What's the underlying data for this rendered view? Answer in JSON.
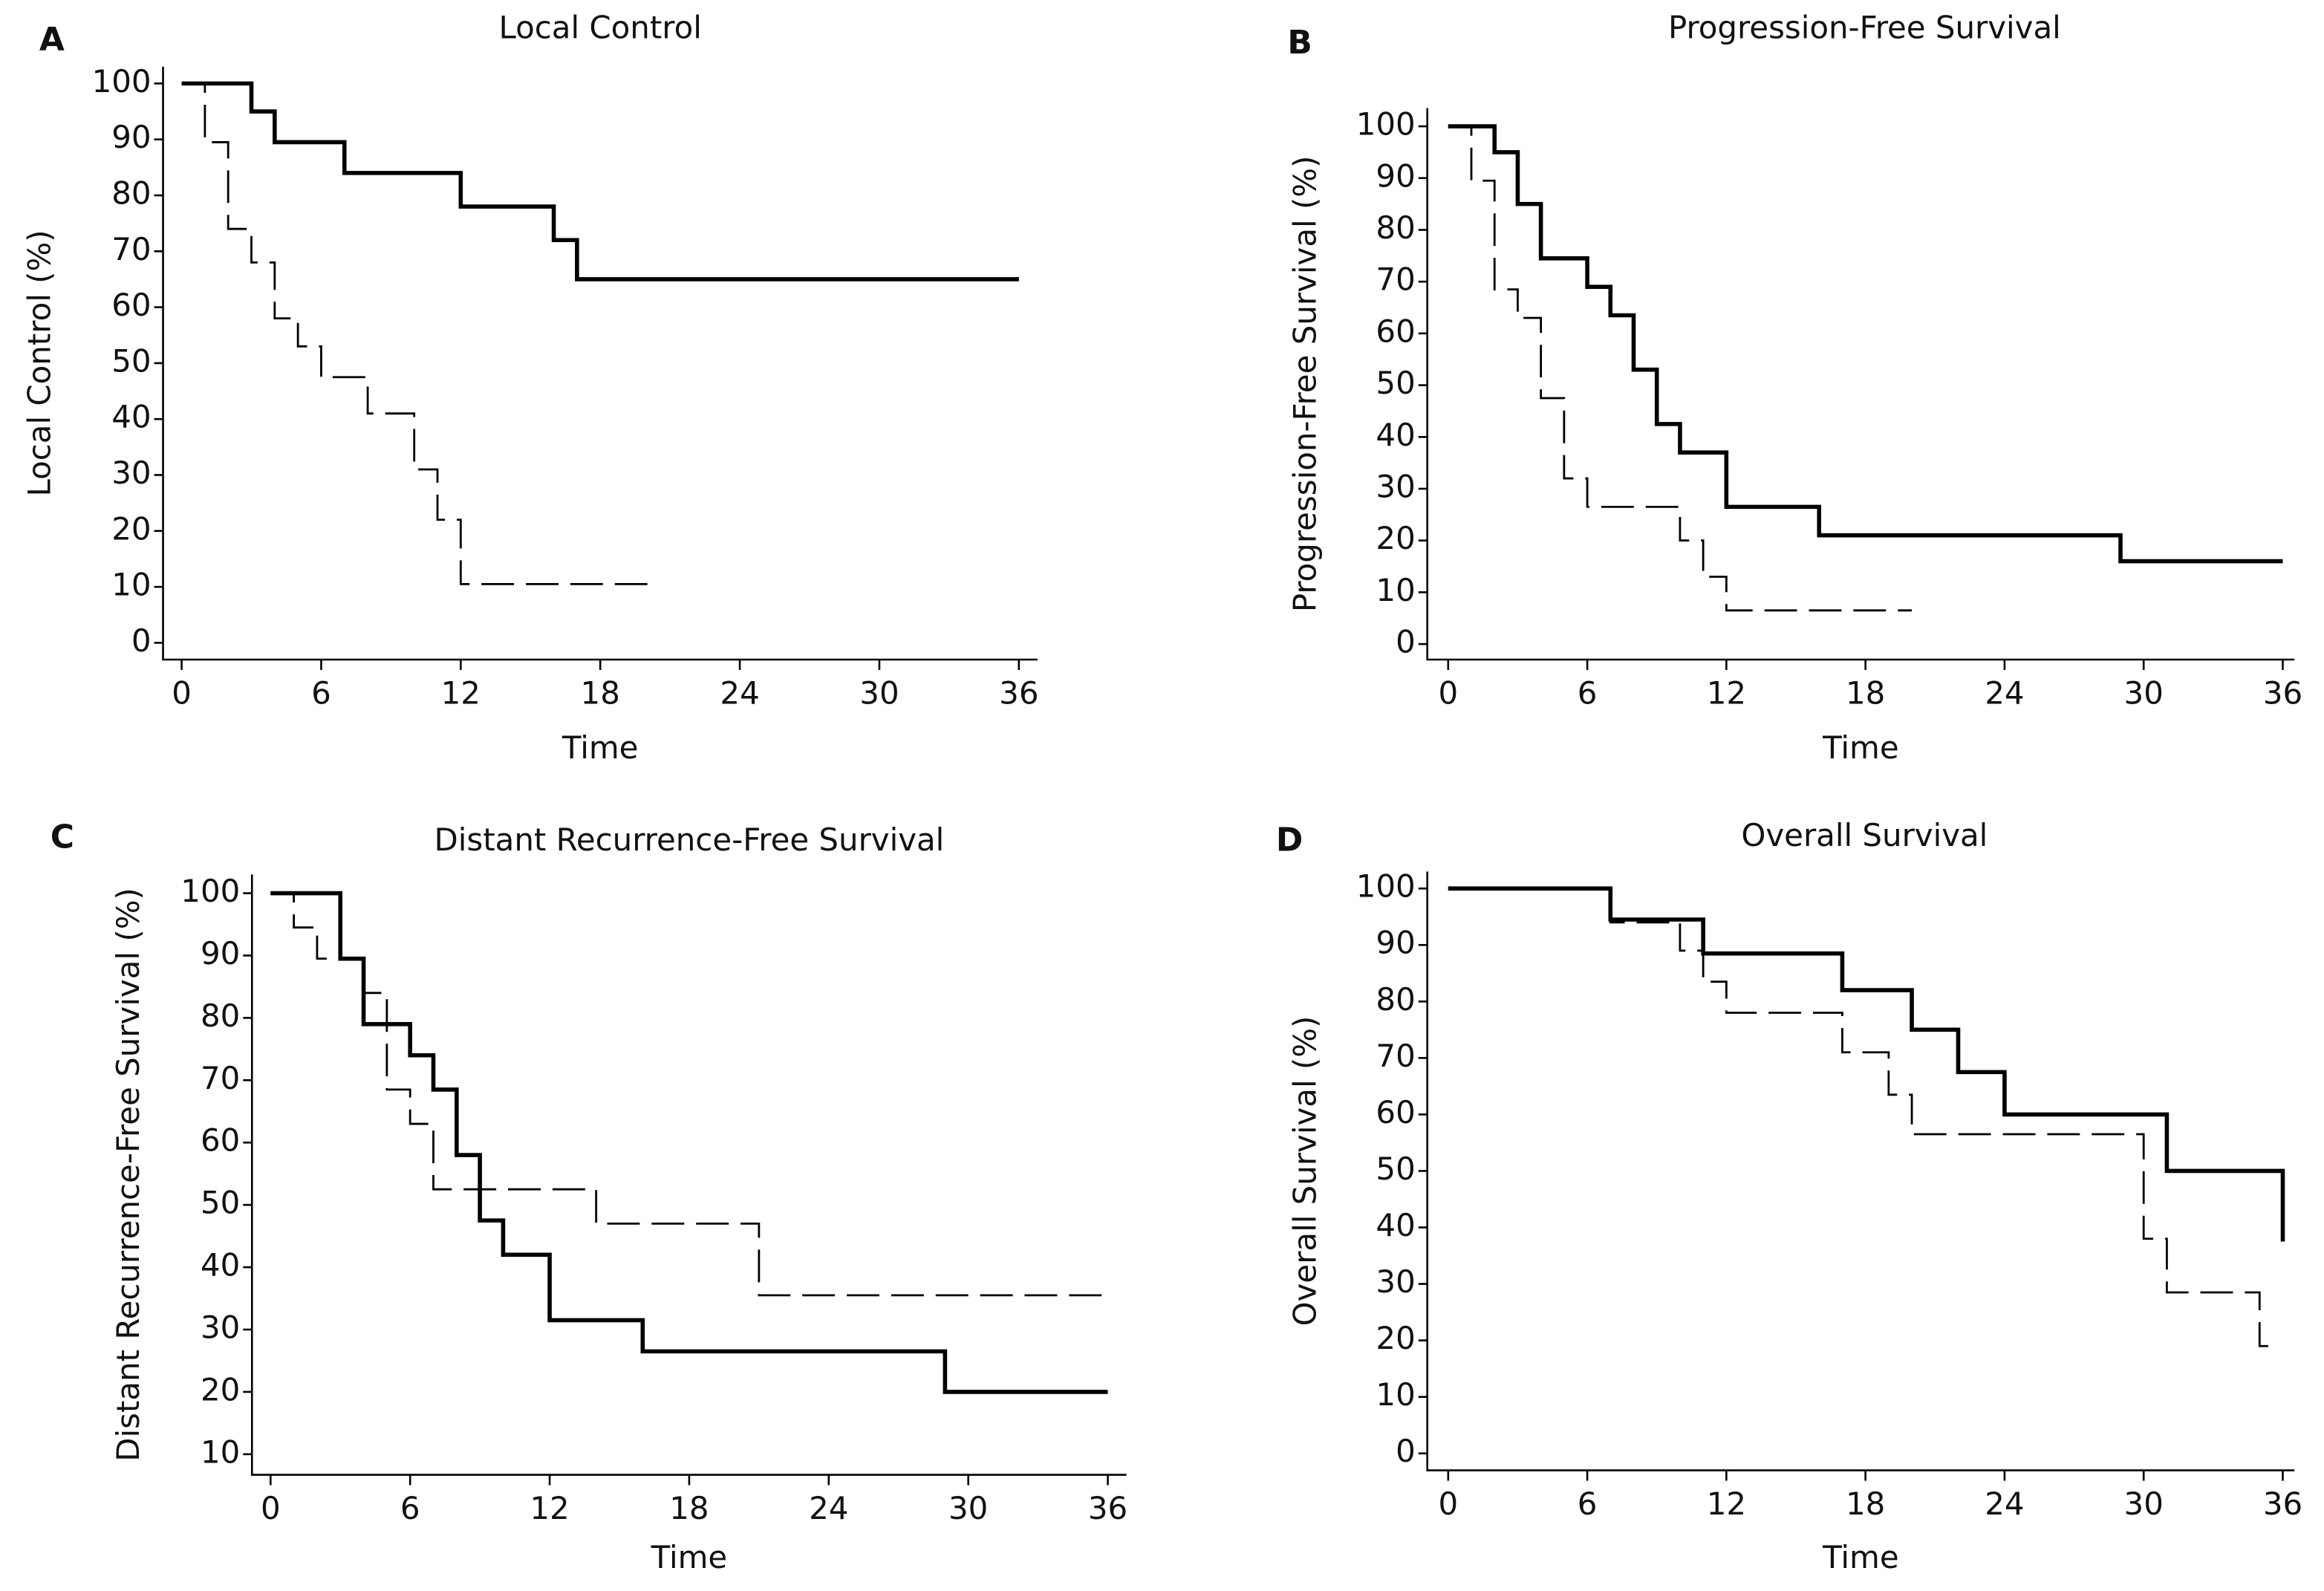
{
  "chart_data": [
    {
      "type": "step",
      "label": "A",
      "title": "Local Control",
      "xlabel": "Time",
      "ylabel": "Local Control (%)",
      "xlim": [
        -0.8,
        36.8
      ],
      "ylim": [
        -3,
        103
      ],
      "xticks": [
        0,
        6,
        12,
        18,
        24,
        30,
        36
      ],
      "yticks": [
        0,
        10,
        20,
        30,
        40,
        50,
        60,
        70,
        80,
        90,
        100
      ],
      "series": [
        {
          "color": "#000000",
          "style": "solid",
          "x": [
            0,
            3,
            4,
            7,
            12,
            16,
            17,
            36
          ],
          "values": [
            100,
            95,
            89.5,
            84,
            78,
            72,
            65,
            65
          ]
        },
        {
          "color": "#000000",
          "style": "dashed",
          "x": [
            0,
            1,
            2,
            3,
            4,
            5,
            6,
            8,
            10,
            11,
            12,
            20.3
          ],
          "values": [
            100,
            89.5,
            74,
            68,
            58,
            53,
            47.5,
            41,
            31,
            22,
            10.5,
            10.5
          ]
        }
      ]
    },
    {
      "type": "step",
      "label": "B",
      "title": "Progression-Free Survival",
      "xlabel": "Time",
      "ylabel": "Progression-Free Survival (%)",
      "xlim": [
        -0.9,
        36.5
      ],
      "ylim": [
        -3,
        103.5
      ],
      "xticks": [
        0,
        6,
        12,
        18,
        24,
        30,
        36
      ],
      "yticks": [
        0,
        10,
        20,
        30,
        40,
        50,
        60,
        70,
        80,
        90,
        100
      ],
      "series": [
        {
          "color": "#000000",
          "style": "solid",
          "x": [
            0,
            2,
            3,
            4,
            6,
            7,
            8,
            9,
            10,
            12,
            16,
            29,
            36
          ],
          "values": [
            100,
            95,
            85,
            74.5,
            69,
            63.5,
            53,
            42.5,
            37,
            26.5,
            21,
            16,
            16
          ]
        },
        {
          "color": "#000000",
          "style": "dashed",
          "x": [
            0,
            1,
            2,
            3,
            4,
            5,
            6,
            10,
            11,
            12,
            20
          ],
          "values": [
            100,
            89.5,
            68.5,
            63,
            47.5,
            32,
            26.5,
            20,
            13,
            6.5,
            6.5
          ]
        }
      ]
    },
    {
      "type": "step",
      "label": "C",
      "title": "Distant Recurrence-Free Survival",
      "xlabel": "Time",
      "ylabel": "Distant Recurrence-Free Survival (%)",
      "xlim": [
        -0.8,
        36.8
      ],
      "ylim": [
        6.7,
        103
      ],
      "xticks": [
        0,
        6,
        12,
        18,
        24,
        30,
        36
      ],
      "yticks": [
        10,
        20,
        30,
        40,
        50,
        60,
        70,
        80,
        90,
        100
      ],
      "series": [
        {
          "color": "#000000",
          "style": "solid",
          "x": [
            0,
            3,
            4,
            6,
            7,
            8,
            9,
            10,
            12,
            16,
            29,
            36
          ],
          "values": [
            100,
            89.5,
            79,
            74,
            68.5,
            58,
            47.5,
            42,
            31.5,
            26.5,
            20,
            20
          ]
        },
        {
          "color": "#000000",
          "style": "dashed",
          "x": [
            0,
            1,
            2,
            4,
            5,
            6,
            7,
            14,
            21,
            36
          ],
          "values": [
            100,
            94.5,
            89.5,
            84,
            68.5,
            63,
            52.5,
            47,
            35.5,
            35.5
          ]
        }
      ]
    },
    {
      "type": "step",
      "label": "D",
      "title": "Overall Survival",
      "xlabel": "Time",
      "ylabel": "Overall Survival (%)",
      "xlim": [
        -0.9,
        36.5
      ],
      "ylim": [
        -3,
        103
      ],
      "xticks": [
        0,
        6,
        12,
        18,
        24,
        30,
        36
      ],
      "yticks": [
        0,
        10,
        20,
        30,
        40,
        50,
        60,
        70,
        80,
        90,
        100
      ],
      "series": [
        {
          "color": "#000000",
          "style": "solid",
          "x": [
            0,
            7,
            11,
            17,
            20,
            22,
            24,
            31,
            36
          ],
          "values": [
            100,
            94.5,
            88.5,
            82,
            75,
            67.5,
            60,
            50,
            37.5
          ]
        },
        {
          "color": "#000000",
          "style": "dashed",
          "x": [
            0,
            7,
            10,
            11,
            12,
            17,
            19,
            20,
            30,
            31,
            35,
            35.5
          ],
          "values": [
            100,
            94,
            89,
            83.5,
            78,
            71,
            63.5,
            56.5,
            38,
            28.5,
            19,
            19
          ]
        }
      ]
    }
  ]
}
